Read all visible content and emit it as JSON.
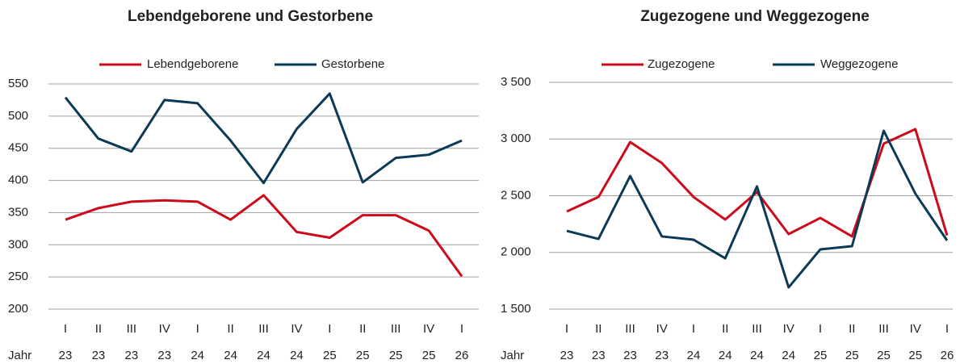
{
  "chart_data": [
    {
      "type": "line",
      "title": "Lebendgeborene und Gestorbene",
      "categories": [
        "I",
        "II",
        "III",
        "IV",
        "I",
        "II",
        "III",
        "IV",
        "I",
        "II",
        "III",
        "IV",
        "I"
      ],
      "years": [
        "23",
        "23",
        "23",
        "23",
        "24",
        "24",
        "24",
        "24",
        "25",
        "25",
        "25",
        "25",
        "26"
      ],
      "x_label": "Jahr",
      "series": [
        {
          "name": "Lebendgeborene",
          "color": "#cc0a1b",
          "values": [
            339,
            357,
            367,
            369,
            367,
            339,
            377,
            320,
            311,
            346,
            346,
            322,
            251
          ]
        },
        {
          "name": "Gestorbene",
          "color": "#0b3a57",
          "values": [
            529,
            465,
            445,
            525,
            520,
            462,
            396,
            480,
            535,
            397,
            435,
            440,
            462
          ]
        }
      ],
      "ylim": [
        200,
        550
      ],
      "yticks": [
        200,
        250,
        300,
        350,
        400,
        450,
        500,
        550
      ],
      "grid": true,
      "legend": "top"
    },
    {
      "type": "line",
      "title": "Zugezogene und Weggezogene",
      "categories": [
        "I",
        "II",
        "III",
        "IV",
        "I",
        "II",
        "III",
        "IV",
        "I",
        "II",
        "III",
        "IV",
        "I"
      ],
      "years": [
        "23",
        "23",
        "23",
        "23",
        "24",
        "24",
        "24",
        "24",
        "25",
        "25",
        "25",
        "25",
        "26"
      ],
      "x_label": "Jahr",
      "series": [
        {
          "name": "Zugezogene",
          "color": "#cc0a1b",
          "values": [
            2361,
            2489,
            2973,
            2788,
            2489,
            2290,
            2532,
            2162,
            2304,
            2141,
            2959,
            3087,
            2150
          ]
        },
        {
          "name": "Weggezogene",
          "color": "#0b3a57",
          "values": [
            2190,
            2119,
            2674,
            2141,
            2112,
            1948,
            2582,
            1692,
            2027,
            2055,
            3073,
            2518,
            2105
          ]
        }
      ],
      "ylim": [
        1500,
        3500
      ],
      "yticks": [
        {
          "value": 1500,
          "label": "1 500"
        },
        {
          "value": 2000,
          "label": "2 000"
        },
        {
          "value": 2500,
          "label": "2 500"
        },
        {
          "value": 3000,
          "label": "3 000"
        },
        {
          "value": 3500,
          "label": "3 500"
        }
      ],
      "grid": true,
      "legend": "top"
    }
  ]
}
